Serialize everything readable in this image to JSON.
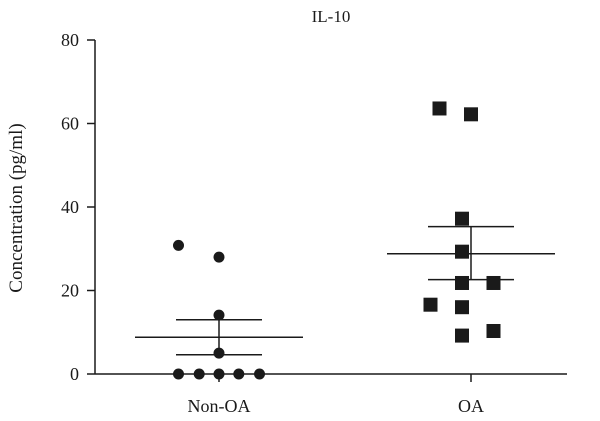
{
  "chart_data": {
    "type": "scatter",
    "title": "IL-10",
    "xlabel": "",
    "ylabel": "Concentration (pg/ml)",
    "ylim": [
      0,
      80
    ],
    "yticks": [
      0,
      20,
      40,
      60,
      80
    ],
    "categories": [
      "Non-OA",
      "OA"
    ],
    "series": [
      {
        "category": "Non-OA",
        "marker": "circle",
        "points": [
          {
            "offset": -0.45,
            "y": 30.8
          },
          {
            "offset": 0.0,
            "y": 28.0
          },
          {
            "offset": 0.0,
            "y": 14.1
          },
          {
            "offset": 0.0,
            "y": 5.0
          },
          {
            "offset": -0.45,
            "y": 0
          },
          {
            "offset": -0.22,
            "y": 0
          },
          {
            "offset": 0.0,
            "y": 0
          },
          {
            "offset": 0.22,
            "y": 0
          },
          {
            "offset": 0.45,
            "y": 0
          }
        ],
        "mean": 8.8,
        "sem_upper": 13.0,
        "sem_lower": 4.6
      },
      {
        "category": "OA",
        "marker": "square",
        "points": [
          {
            "offset": -0.35,
            "y": 63.6
          },
          {
            "offset": 0.0,
            "y": 62.2
          },
          {
            "offset": -0.1,
            "y": 37.2
          },
          {
            "offset": -0.1,
            "y": 29.3
          },
          {
            "offset": -0.1,
            "y": 21.8
          },
          {
            "offset": 0.25,
            "y": 21.8
          },
          {
            "offset": -0.45,
            "y": 16.6
          },
          {
            "offset": -0.1,
            "y": 16.0
          },
          {
            "offset": 0.25,
            "y": 10.3
          },
          {
            "offset": -0.1,
            "y": 9.2
          }
        ],
        "mean": 28.8,
        "sem_upper": 35.3,
        "sem_lower": 22.6
      }
    ]
  }
}
